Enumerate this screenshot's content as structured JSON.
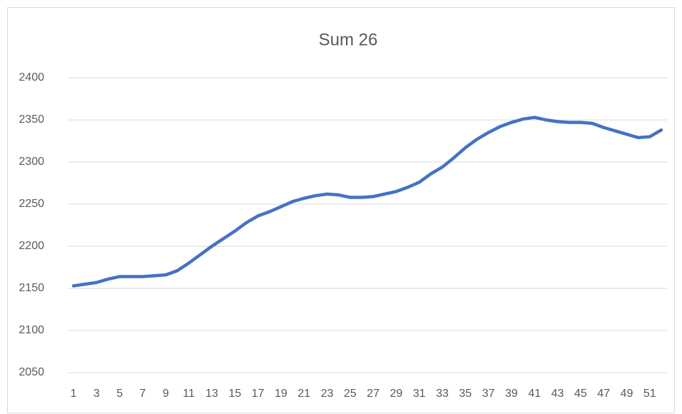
{
  "chart_data": {
    "type": "line",
    "title": "Sum 26",
    "categories": [
      1,
      null,
      3,
      null,
      5,
      null,
      7,
      null,
      9,
      null,
      11,
      null,
      13,
      null,
      15,
      null,
      17,
      null,
      19,
      null,
      21,
      null,
      23,
      null,
      25,
      null,
      27,
      null,
      29,
      null,
      31,
      null,
      33,
      null,
      35,
      null,
      37,
      null,
      39,
      null,
      41,
      null,
      43,
      null,
      45,
      null,
      47,
      null,
      49,
      null,
      51,
      null
    ],
    "series": [
      {
        "name": "Sum 26",
        "color": "#4472c4",
        "values": [
          2153,
          2155,
          2157,
          2161,
          2164,
          2164,
          2164,
          2165,
          2166,
          2171,
          2180,
          2190,
          2200,
          2209,
          2218,
          2228,
          2236,
          2241,
          2247,
          2253,
          2257,
          2260,
          2262,
          2261,
          2258,
          2258,
          2259,
          2262,
          2265,
          2270,
          2276,
          2286,
          2294,
          2305,
          2317,
          2327,
          2335,
          2342,
          2347,
          2351,
          2353,
          2350,
          2348,
          2347,
          2347,
          2346,
          2341,
          2337,
          2333,
          2329,
          2330,
          2338
        ]
      }
    ],
    "ylim": [
      2050,
      2400
    ],
    "yticks": [
      2050,
      2100,
      2150,
      2200,
      2250,
      2300,
      2350,
      2400
    ],
    "grid": true
  }
}
